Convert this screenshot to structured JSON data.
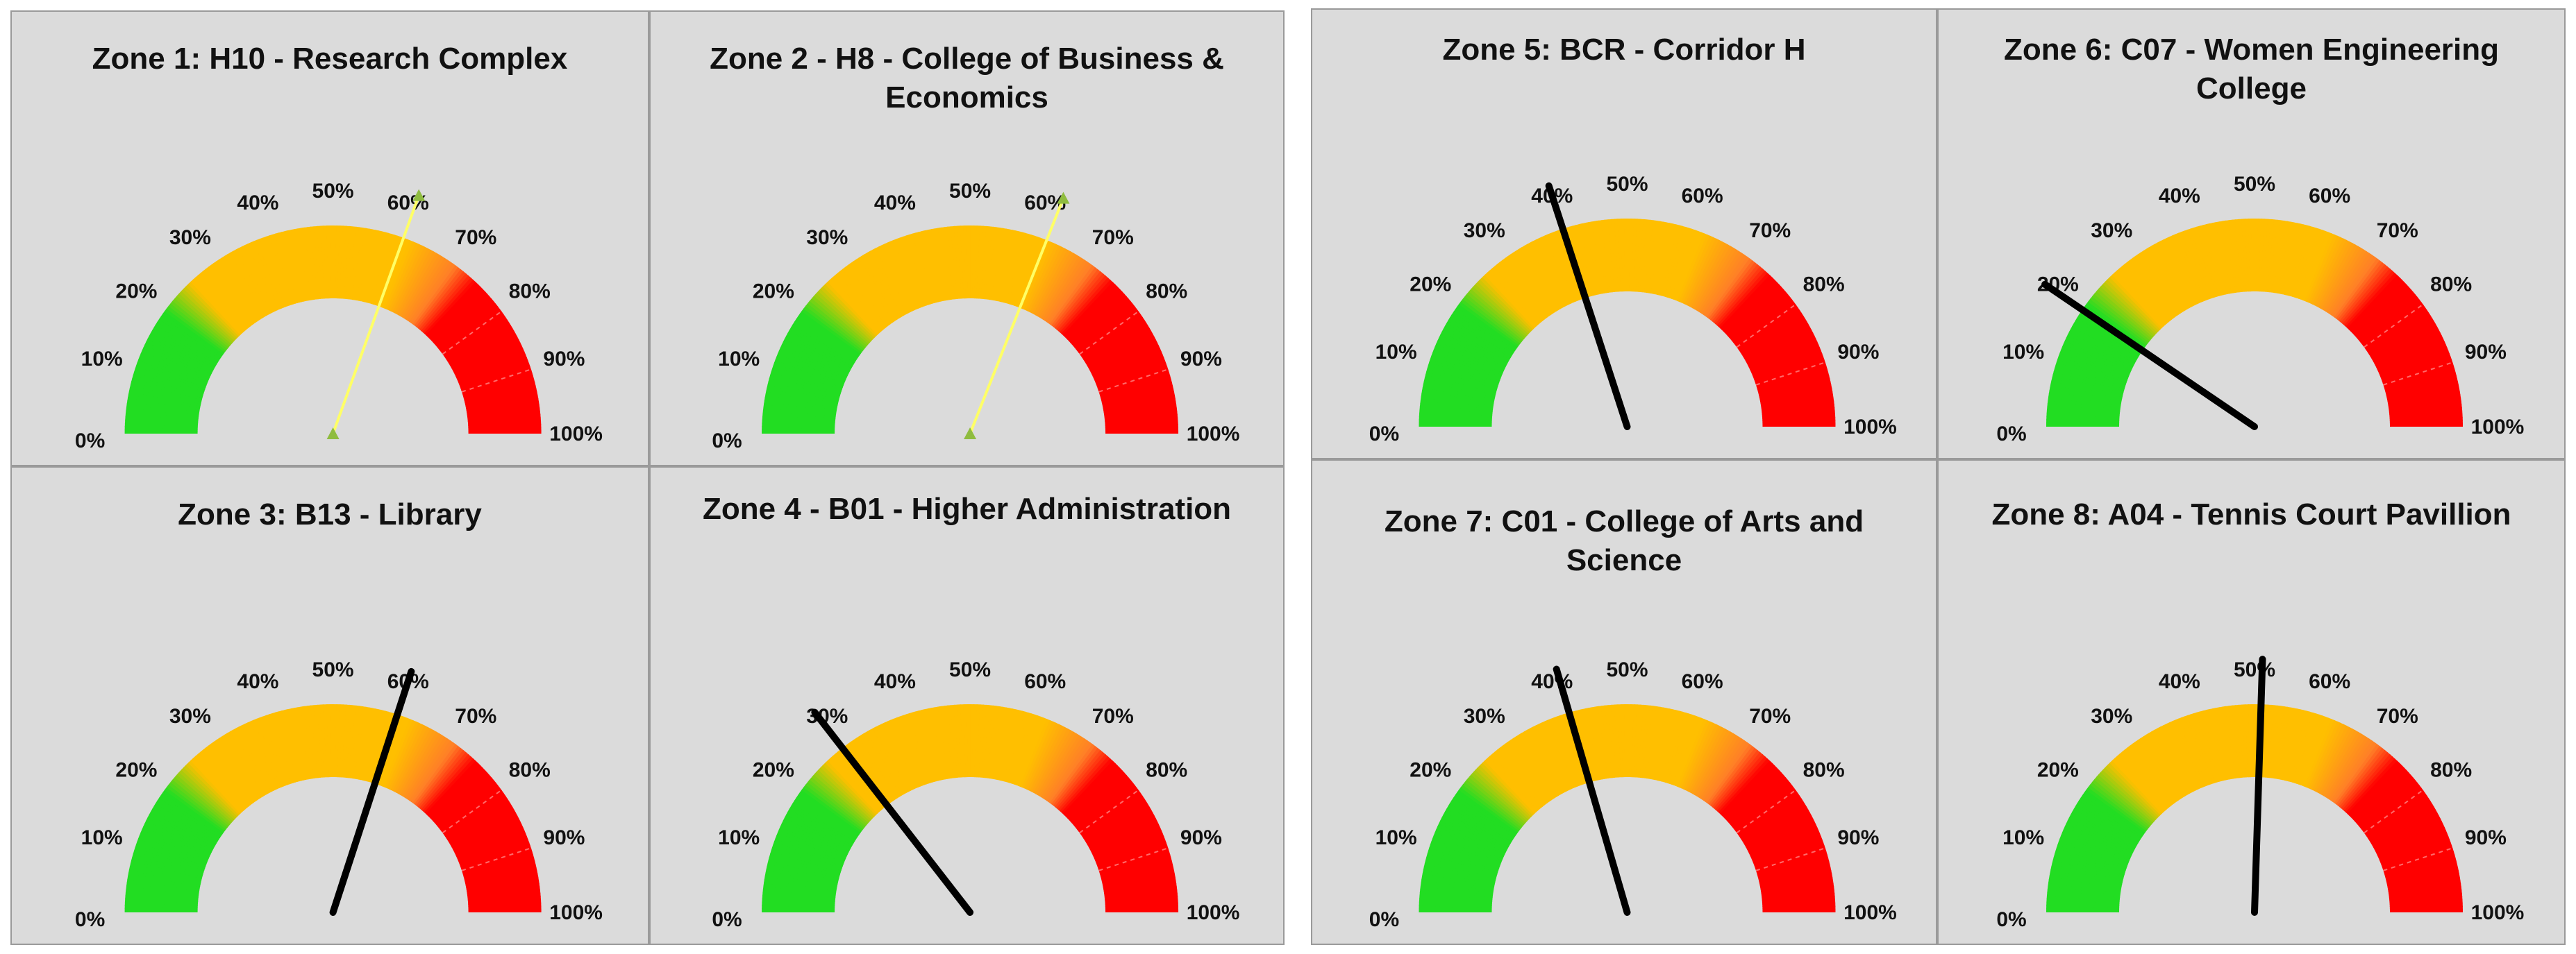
{
  "colors": {
    "panel_background": "#dbdbdb",
    "green": "#22dd22",
    "amber": "#ffbf00",
    "orange": "#ff7f27",
    "red": "#ff0000",
    "needle_dark": "#000000",
    "needle_highlight": "#ffff66",
    "marker": "#8fbc3f"
  },
  "tick_labels": [
    "0%",
    "10%",
    "20%",
    "30%",
    "40%",
    "50%",
    "60%",
    "70%",
    "80%",
    "90%",
    "100%"
  ],
  "chart_data": [
    {
      "type": "gauge",
      "title": "Zone 1: H10 - Research Complex",
      "value": 61,
      "needle_style": "highlight",
      "ylim": [
        0,
        100
      ]
    },
    {
      "type": "gauge",
      "title": "Zone 2 - H8 - College of Business & Economics",
      "value": 62,
      "needle_style": "highlight",
      "ylim": [
        0,
        100
      ]
    },
    {
      "type": "gauge",
      "title": "Zone 3: B13 - Library",
      "value": 60,
      "needle_style": "dark",
      "ylim": [
        0,
        100
      ]
    },
    {
      "type": "gauge",
      "title": "Zone 4 - B01 - Higher Administration",
      "value": 29,
      "needle_style": "dark",
      "ylim": [
        0,
        100
      ]
    },
    {
      "type": "gauge",
      "title": "Zone 5: BCR - Corridor H",
      "value": 40,
      "needle_style": "dark",
      "ylim": [
        0,
        100
      ]
    },
    {
      "type": "gauge",
      "title": "Zone 6: C07 - Women Engineering College",
      "value": 19,
      "needle_style": "dark",
      "ylim": [
        0,
        100
      ]
    },
    {
      "type": "gauge",
      "title": "Zone 7: C01 - College of Arts and Science",
      "value": 41,
      "needle_style": "dark",
      "ylim": [
        0,
        100
      ]
    },
    {
      "type": "gauge",
      "title": "Zone 8: A04 - Tennis Court Pavillion",
      "value": 51,
      "needle_style": "dark",
      "ylim": [
        0,
        100
      ]
    }
  ]
}
